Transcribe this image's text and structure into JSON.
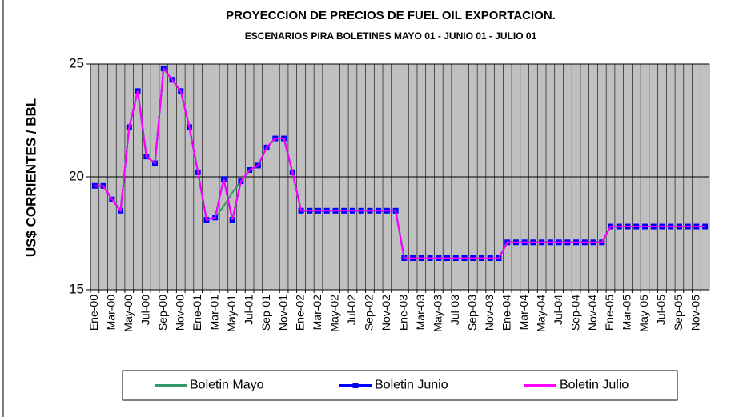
{
  "chart_data": {
    "type": "line",
    "title": "PROYECCION DE PRECIOS DE FUEL OIL EXPORTACION.",
    "subtitle": "ESCENARIOS  PIRA BOLETINES  MAYO 01 - JUNIO 01 - JULIO 01",
    "y_label": "US$ CORRIENTES / BBL",
    "categories": [
      "Ene-00",
      null,
      "Mar-00",
      null,
      "May-00",
      null,
      "Jul-00",
      null,
      "Sep-00",
      null,
      "Nov-00",
      null,
      "Ene-01",
      null,
      "Mar-01",
      null,
      "May-01",
      null,
      "Jul-01",
      null,
      "Sep-01",
      null,
      "Nov-01",
      null,
      "Ene-02",
      null,
      "Mar-02",
      null,
      "May-02",
      null,
      "Jul-02",
      null,
      "Sep-02",
      null,
      "Nov-02",
      null,
      "Ene-03",
      null,
      "Mar-03",
      null,
      "May-03",
      null,
      "Jul-03",
      null,
      "Sep-03",
      null,
      "Nov-03",
      null,
      "Ene-04",
      null,
      "Mar-04",
      null,
      "May-04",
      null,
      "Jul-04",
      null,
      "Sep-04",
      null,
      "Nov-04",
      null,
      "Ene-05",
      null,
      "Mar-05",
      null,
      "May-05",
      null,
      "Jul-05",
      null,
      "Sep-05",
      null,
      "Nov-05",
      null
    ],
    "series": [
      {
        "name": "Boletin Mayo",
        "color": "#339966",
        "marker": false,
        "values": [
          19.6,
          19.6,
          19.0,
          18.5,
          22.2,
          23.8,
          20.9,
          20.6,
          24.8,
          24.3,
          23.8,
          22.2,
          20.2,
          18.1,
          18.2,
          18.7,
          19.3,
          19.8,
          20.3,
          20.5,
          21.3,
          21.7,
          21.7,
          20.2,
          18.5,
          18.5,
          18.5,
          18.5,
          18.5,
          18.5,
          18.5,
          18.5,
          18.5,
          18.5,
          18.5,
          18.5,
          16.4,
          16.4,
          16.4,
          16.4,
          16.4,
          16.4,
          16.4,
          16.4,
          16.4,
          16.4,
          16.4,
          16.4,
          17.1,
          17.1,
          17.1,
          17.1,
          17.1,
          17.1,
          17.1,
          17.1,
          17.1,
          17.1,
          17.1,
          17.1,
          17.8,
          17.8,
          17.8,
          17.8,
          17.8,
          17.8,
          17.8,
          17.8,
          17.8,
          17.8,
          17.8,
          17.8
        ]
      },
      {
        "name": "Boletin Junio",
        "color": "#0000ff",
        "marker": true,
        "values": [
          19.6,
          19.6,
          19.0,
          18.5,
          22.2,
          23.8,
          20.9,
          20.6,
          24.8,
          24.3,
          23.8,
          22.2,
          20.2,
          18.1,
          18.2,
          19.9,
          18.1,
          19.8,
          20.3,
          20.5,
          21.3,
          21.7,
          21.7,
          20.2,
          18.5,
          18.5,
          18.5,
          18.5,
          18.5,
          18.5,
          18.5,
          18.5,
          18.5,
          18.5,
          18.5,
          18.5,
          16.4,
          16.4,
          16.4,
          16.4,
          16.4,
          16.4,
          16.4,
          16.4,
          16.4,
          16.4,
          16.4,
          16.4,
          17.1,
          17.1,
          17.1,
          17.1,
          17.1,
          17.1,
          17.1,
          17.1,
          17.1,
          17.1,
          17.1,
          17.1,
          17.8,
          17.8,
          17.8,
          17.8,
          17.8,
          17.8,
          17.8,
          17.8,
          17.8,
          17.8,
          17.8,
          17.8
        ]
      },
      {
        "name": "Boletin Julio",
        "color": "#ff00ff",
        "marker": false,
        "values": [
          19.6,
          19.6,
          19.0,
          18.5,
          22.2,
          23.8,
          20.9,
          20.6,
          24.8,
          24.3,
          23.8,
          22.2,
          20.2,
          18.1,
          18.2,
          19.9,
          18.1,
          19.8,
          20.3,
          20.5,
          21.3,
          21.7,
          21.7,
          20.2,
          18.5,
          18.5,
          18.5,
          18.5,
          18.5,
          18.5,
          18.5,
          18.5,
          18.5,
          18.5,
          18.5,
          18.5,
          16.4,
          16.4,
          16.4,
          16.4,
          16.4,
          16.4,
          16.4,
          16.4,
          16.4,
          16.4,
          16.4,
          16.4,
          17.1,
          17.1,
          17.1,
          17.1,
          17.1,
          17.1,
          17.1,
          17.1,
          17.1,
          17.1,
          17.1,
          17.1,
          17.8,
          17.8,
          17.8,
          17.8,
          17.8,
          17.8,
          17.8,
          17.8,
          17.8,
          17.8,
          17.8,
          17.8
        ]
      }
    ],
    "ylim": [
      15,
      25
    ],
    "yticks": [
      15,
      20,
      25
    ],
    "grid": true,
    "plot_background": "#c0c0c0",
    "legend": "bottom"
  }
}
